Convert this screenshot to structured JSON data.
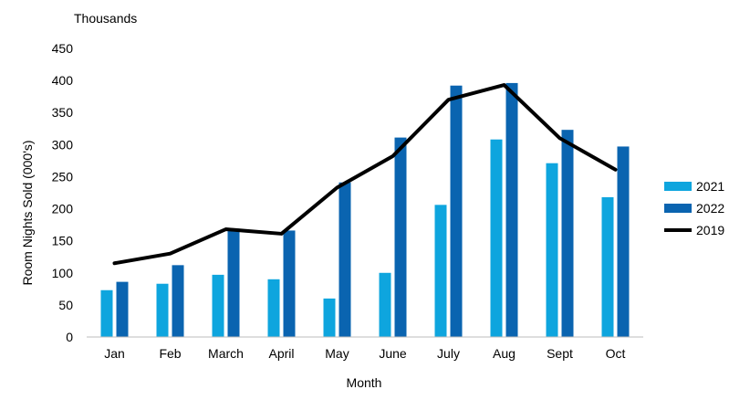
{
  "chart_data": {
    "type": "bar",
    "unit_label": "Thousands",
    "xlabel": "Month",
    "ylabel": "Room Nights Sold (000's)",
    "ylim": [
      0,
      450
    ],
    "ytick_step": 50,
    "categories": [
      "Jan",
      "Feb",
      "March",
      "April",
      "May",
      "June",
      "July",
      "Aug",
      "Sept",
      "Oct"
    ],
    "series": [
      {
        "name": "2021",
        "type": "bar",
        "color": "#0ea5de",
        "values": [
          73,
          83,
          97,
          90,
          60,
          100,
          206,
          308,
          271,
          218
        ]
      },
      {
        "name": "2022",
        "type": "bar",
        "color": "#0a64b0",
        "values": [
          86,
          112,
          169,
          166,
          241,
          311,
          392,
          396,
          323,
          297
        ]
      },
      {
        "name": "2019",
        "type": "line",
        "color": "#000000",
        "values": [
          115,
          130,
          168,
          161,
          233,
          282,
          370,
          393,
          310,
          261
        ]
      }
    ],
    "legend_position": "right",
    "grid": false
  }
}
